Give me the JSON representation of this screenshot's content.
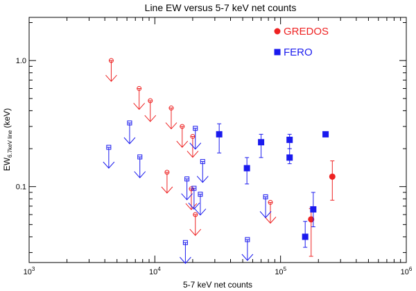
{
  "chart_data": {
    "type": "scatter",
    "title": "Line EW versus 5-7 keV net counts",
    "xlabel": "5-7 keV net counts",
    "ylabel_main": "EW",
    "ylabel_sub": "6.7keV line",
    "ylabel_unit": "(keV)",
    "xscale": "log",
    "yscale": "log",
    "xlim": [
      1000,
      1000000
    ],
    "ylim": [
      0.025,
      2.2
    ],
    "x_ticks": [
      {
        "value": 1000,
        "base": "10",
        "exp": "3"
      },
      {
        "value": 10000,
        "base": "10",
        "exp": "4"
      },
      {
        "value": 100000,
        "base": "10",
        "exp": "5"
      },
      {
        "value": 1000000,
        "base": "10",
        "exp": "6"
      }
    ],
    "y_ticks": [
      {
        "value": 0.1,
        "label": "0.1"
      },
      {
        "value": 1.0,
        "label": "1.0"
      }
    ],
    "legend": [
      {
        "name": "GREDOS",
        "color": "#ee2222",
        "marker": "circle"
      },
      {
        "name": "FERO",
        "color": "#1a1aee",
        "marker": "square"
      }
    ],
    "series": [
      {
        "name": "GREDOS",
        "color": "#ee2222",
        "detections": [
          {
            "x": 175000,
            "y": 0.055,
            "ylo": 0.028,
            "yhi": 0.067
          },
          {
            "x": 258000,
            "y": 0.12,
            "ylo": 0.078,
            "yhi": 0.16
          }
        ],
        "upper_limits": [
          {
            "x": 4500,
            "y": 1.0
          },
          {
            "x": 7500,
            "y": 0.6
          },
          {
            "x": 9200,
            "y": 0.48
          },
          {
            "x": 13500,
            "y": 0.42
          },
          {
            "x": 16500,
            "y": 0.3
          },
          {
            "x": 20000,
            "y": 0.25
          },
          {
            "x": 12500,
            "y": 0.13
          },
          {
            "x": 19500,
            "y": 0.096
          },
          {
            "x": 21000,
            "y": 0.06
          },
          {
            "x": 83000,
            "y": 0.075
          }
        ]
      },
      {
        "name": "FERO",
        "color": "#1a1aee",
        "detections": [
          {
            "x": 32500,
            "y": 0.26,
            "ylo": 0.185,
            "yhi": 0.315
          },
          {
            "x": 54000,
            "y": 0.14,
            "ylo": 0.105,
            "yhi": 0.17
          },
          {
            "x": 70000,
            "y": 0.225,
            "ylo": 0.17,
            "yhi": 0.26
          },
          {
            "x": 118000,
            "y": 0.235,
            "ylo": 0.2,
            "yhi": 0.26
          },
          {
            "x": 118000,
            "y": 0.17,
            "ylo": 0.152,
            "yhi": 0.2
          },
          {
            "x": 228000,
            "y": 0.26,
            "ylo": 0.25,
            "yhi": 0.27
          },
          {
            "x": 157000,
            "y": 0.04,
            "ylo": 0.033,
            "yhi": 0.053
          },
          {
            "x": 182000,
            "y": 0.066,
            "ylo": 0.048,
            "yhi": 0.09
          }
        ],
        "upper_limits": [
          {
            "x": 4300,
            "y": 0.205
          },
          {
            "x": 6300,
            "y": 0.32
          },
          {
            "x": 7600,
            "y": 0.172
          },
          {
            "x": 21000,
            "y": 0.29
          },
          {
            "x": 24000,
            "y": 0.158
          },
          {
            "x": 18000,
            "y": 0.115
          },
          {
            "x": 20500,
            "y": 0.097
          },
          {
            "x": 23000,
            "y": 0.087
          },
          {
            "x": 17500,
            "y": 0.036
          },
          {
            "x": 54500,
            "y": 0.038
          },
          {
            "x": 76000,
            "y": 0.083
          }
        ]
      }
    ]
  }
}
